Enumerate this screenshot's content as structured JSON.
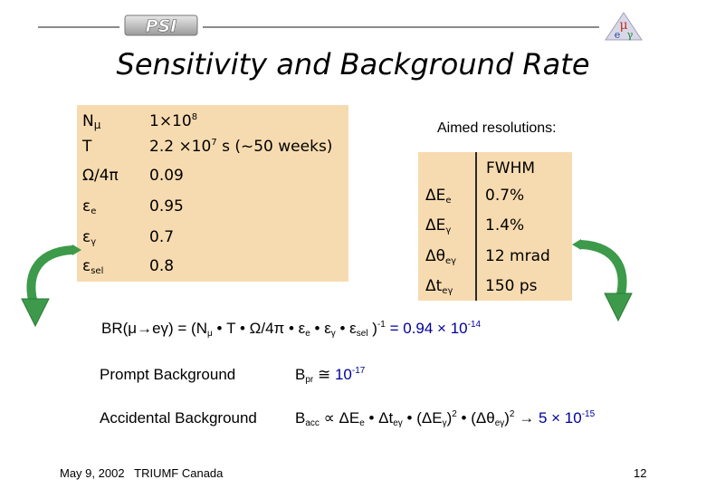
{
  "logo": {
    "text": "PSI"
  },
  "title": "Sensitivity and Background Rate",
  "params": [
    {
      "label": "Nμ",
      "value": "1×10⁸"
    },
    {
      "label": "T",
      "value": "2.2 ×10⁷ s (~50 weeks)"
    },
    {
      "label": "Ω/4π",
      "value": "0.09"
    },
    {
      "label": "εe",
      "value": "0.95"
    },
    {
      "label": "εγ",
      "value": "0.7"
    },
    {
      "label": "εsel",
      "value": "0.8"
    }
  ],
  "resolutions": {
    "heading": "Aimed resolutions:",
    "column": "FWHM",
    "rows": [
      {
        "label": "ΔEe",
        "value": "0.7%"
      },
      {
        "label": "ΔEγ",
        "value": "1.4%"
      },
      {
        "label": "Δθeγ",
        "value": "12 mrad"
      },
      {
        "label": "Δteγ",
        "value": "150 ps"
      }
    ]
  },
  "formulas": {
    "br": "BR(μ→eγ) = (Nμ • T • Ω/4π • εe • εγ • εsel )⁻¹ = 0.94 × 10⁻¹⁴",
    "prompt_label": "Prompt Background",
    "prompt_formula": "Bpr ≅ 10⁻¹⁷",
    "accidental_label": "Accidental Background",
    "accidental_formula": "Bacc ∝ ΔEe • Δteγ • (ΔEγ)² • (Δθeγ)² → 5 × 10⁻¹⁵"
  },
  "footer": {
    "date_place": "May 9, 2002   TRIUMF Canada",
    "page": "12"
  },
  "colors": {
    "table_fill": "#f7dbb0",
    "rule": "#8a8a8a",
    "highlight": "#00009a",
    "arrow": "#3d9a4a"
  }
}
